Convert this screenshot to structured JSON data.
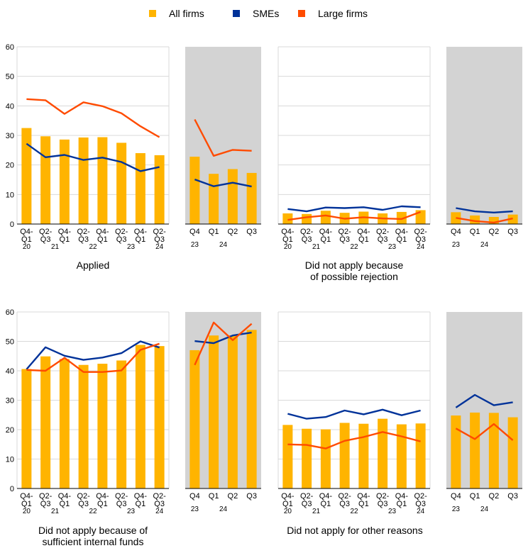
{
  "legend": {
    "items": [
      {
        "label": "All firms",
        "color": "#FFB400"
      },
      {
        "label": "SMEs",
        "color": "#003299"
      },
      {
        "label": "Large firms",
        "color": "#FF4B00"
      }
    ]
  },
  "colors": {
    "all_firms": "#FFB400",
    "smes": "#003299",
    "large_firms": "#FF4B00",
    "grid": "#d9d9d9",
    "shaded_panel": "#d3d3d3"
  },
  "panel_titles": {
    "applied": "Applied",
    "rejection_line1": "Did not apply because",
    "rejection_line2": "of possible rejection",
    "internal_line1": "Did not apply because of",
    "internal_line2": "sufficient internal funds",
    "other": "Did not apply for other reasons"
  },
  "chart_data": [
    {
      "type": "bar",
      "title": "Applied",
      "ylim": [
        0,
        60
      ],
      "yticks": [
        0,
        10,
        20,
        30,
        40,
        50,
        60
      ],
      "grid": true,
      "legend": "top",
      "left": {
        "categories": [
          "Q4-Q1",
          "Q2-Q3",
          "Q4-Q1",
          "Q2-Q3",
          "Q4-Q1",
          "Q2-Q3",
          "Q4-Q1",
          "Q2-Q3"
        ],
        "tick_top": [
          "Q4-",
          "Q2-",
          "Q4-",
          "Q2-",
          "Q4-",
          "Q2-",
          "Q4-",
          "Q2-"
        ],
        "tick_bottom": [
          "Q1",
          "Q3",
          "Q1",
          "Q3",
          "Q1",
          "Q3",
          "Q1",
          "Q3"
        ],
        "year_labels": [
          "20",
          "21",
          "22",
          "23",
          "24"
        ],
        "year_label_slots": [
          0,
          1.5,
          3.5,
          5.5,
          7
        ],
        "series": [
          {
            "name": "All firms",
            "kind": "bar",
            "values": [
              32.5,
              29.7,
              28.6,
              29.3,
              29.4,
              27.5,
              24.0,
              23.3
            ]
          },
          {
            "name": "SMEs",
            "kind": "line",
            "values": [
              27.2,
              22.6,
              23.4,
              21.7,
              22.5,
              21.0,
              17.9,
              19.3
            ]
          },
          {
            "name": "Large firms",
            "kind": "line",
            "values": [
              42.3,
              41.9,
              37.3,
              41.2,
              39.9,
              37.5,
              33.1,
              29.4
            ]
          }
        ]
      },
      "right": {
        "shaded": true,
        "categories": [
          "Q4",
          "Q1",
          "Q2",
          "Q3"
        ],
        "year_labels": [
          "23",
          "24"
        ],
        "year_label_slots": [
          0,
          1.5
        ],
        "series": [
          {
            "name": "All firms",
            "kind": "bar",
            "values": [
              22.8,
              17.0,
              18.6,
              17.3
            ]
          },
          {
            "name": "SMEs",
            "kind": "line",
            "values": [
              15.1,
              12.8,
              14.0,
              12.7
            ]
          },
          {
            "name": "Large firms",
            "kind": "line",
            "values": [
              35.4,
              23.1,
              25.1,
              24.8
            ]
          }
        ]
      }
    },
    {
      "type": "bar",
      "title": "Did not apply because of possible rejection",
      "ylim": [
        0,
        60
      ],
      "grid": true,
      "left": {
        "categories": [
          "Q4-Q1",
          "Q2-Q3",
          "Q4-Q1",
          "Q2-Q3",
          "Q4-Q1",
          "Q2-Q3",
          "Q4-Q1",
          "Q2-Q3"
        ],
        "tick_top": [
          "Q4-",
          "Q2-",
          "Q4-",
          "Q2-",
          "Q4-",
          "Q2-",
          "Q4-",
          "Q2-"
        ],
        "tick_bottom": [
          "Q1",
          "Q3",
          "Q1",
          "Q3",
          "Q1",
          "Q3",
          "Q1",
          "Q3"
        ],
        "year_labels": [
          "20",
          "21",
          "22",
          "23",
          "24"
        ],
        "year_label_slots": [
          0,
          1.5,
          3.5,
          5.5,
          7
        ],
        "series": [
          {
            "name": "All firms",
            "kind": "bar",
            "values": [
              3.6,
              3.4,
              4.5,
              3.8,
              4.2,
              3.6,
              4.1,
              4.7
            ]
          },
          {
            "name": "SMEs",
            "kind": "line",
            "values": [
              5.1,
              4.3,
              5.6,
              5.4,
              5.7,
              4.8,
              6.0,
              5.7
            ]
          },
          {
            "name": "Large firms",
            "kind": "line",
            "values": [
              1.4,
              2.3,
              2.9,
              1.8,
              2.3,
              1.9,
              1.7,
              4.1
            ]
          }
        ]
      },
      "right": {
        "shaded": true,
        "categories": [
          "Q4",
          "Q1",
          "Q2",
          "Q3"
        ],
        "year_labels": [
          "23",
          "24"
        ],
        "year_label_slots": [
          0,
          1.5
        ],
        "series": [
          {
            "name": "All firms",
            "kind": "bar",
            "values": [
              4.0,
              2.9,
              2.4,
              3.2
            ]
          },
          {
            "name": "SMEs",
            "kind": "line",
            "values": [
              5.4,
              4.3,
              3.9,
              4.3
            ]
          },
          {
            "name": "Large firms",
            "kind": "line",
            "values": [
              2.1,
              1.0,
              0.5,
              1.9
            ]
          }
        ]
      }
    },
    {
      "type": "bar",
      "title": "Did not apply because of sufficient internal funds",
      "ylim": [
        0,
        60
      ],
      "yticks": [
        0,
        10,
        20,
        30,
        40,
        50,
        60
      ],
      "grid": true,
      "left": {
        "categories": [
          "Q4-Q1",
          "Q2-Q3",
          "Q4-Q1",
          "Q2-Q3",
          "Q4-Q1",
          "Q2-Q3",
          "Q4-Q1",
          "Q2-Q3"
        ],
        "tick_top": [
          "Q4-",
          "Q2-",
          "Q4-",
          "Q2-",
          "Q4-",
          "Q2-",
          "Q4-",
          "Q2-"
        ],
        "tick_bottom": [
          "Q1",
          "Q3",
          "Q1",
          "Q3",
          "Q1",
          "Q3",
          "Q1",
          "Q3"
        ],
        "year_labels": [
          "20",
          "21",
          "22",
          "23",
          "24"
        ],
        "year_label_slots": [
          0,
          1.5,
          3.5,
          5.5,
          7
        ],
        "series": [
          {
            "name": "All firms",
            "kind": "bar",
            "values": [
              40.6,
              44.9,
              44.0,
              42.0,
              42.4,
              43.5,
              48.8,
              48.4
            ]
          },
          {
            "name": "SMEs",
            "kind": "line",
            "values": [
              40.5,
              48.0,
              45.1,
              43.7,
              44.5,
              46.0,
              50.0,
              47.9
            ]
          },
          {
            "name": "Large firms",
            "kind": "line",
            "values": [
              40.3,
              40.0,
              44.4,
              39.6,
              39.6,
              40.1,
              47.1,
              49.2
            ]
          }
        ]
      },
      "right": {
        "shaded": true,
        "categories": [
          "Q4",
          "Q1",
          "Q2",
          "Q3"
        ],
        "year_labels": [
          "23",
          "24"
        ],
        "year_label_slots": [
          0,
          1.5
        ],
        "series": [
          {
            "name": "All firms",
            "kind": "bar",
            "values": [
              47.0,
              52.0,
              52.0,
              53.9
            ]
          },
          {
            "name": "SMEs",
            "kind": "line",
            "values": [
              50.1,
              49.4,
              52.0,
              53.0
            ]
          },
          {
            "name": "Large firms",
            "kind": "line",
            "values": [
              42.0,
              56.4,
              50.4,
              56.0
            ]
          }
        ]
      }
    },
    {
      "type": "bar",
      "title": "Did not apply for other reasons",
      "ylim": [
        0,
        60
      ],
      "grid": true,
      "left": {
        "categories": [
          "Q4-Q1",
          "Q2-Q3",
          "Q4-Q1",
          "Q2-Q3",
          "Q4-Q1",
          "Q2-Q3",
          "Q4-Q1",
          "Q2-Q3"
        ],
        "tick_top": [
          "Q4-",
          "Q2-",
          "Q4-",
          "Q2-",
          "Q4-",
          "Q2-",
          "Q4-",
          "Q2-"
        ],
        "tick_bottom": [
          "Q1",
          "Q3",
          "Q1",
          "Q3",
          "Q1",
          "Q3",
          "Q1",
          "Q3"
        ],
        "year_labels": [
          "20",
          "21",
          "22",
          "23",
          "24"
        ],
        "year_label_slots": [
          0,
          1.5,
          3.5,
          5.5,
          7
        ],
        "series": [
          {
            "name": "All firms",
            "kind": "bar",
            "values": [
              21.6,
              20.3,
              20.1,
              22.3,
              22.0,
              23.7,
              21.8,
              22.1
            ]
          },
          {
            "name": "SMEs",
            "kind": "line",
            "values": [
              25.4,
              23.7,
              24.3,
              26.5,
              25.2,
              26.8,
              24.9,
              26.5
            ]
          },
          {
            "name": "Large firms",
            "kind": "line",
            "values": [
              15.0,
              14.8,
              13.6,
              16.2,
              17.5,
              19.2,
              17.7,
              16.0
            ]
          }
        ]
      },
      "right": {
        "shaded": true,
        "categories": [
          "Q4",
          "Q1",
          "Q2",
          "Q3"
        ],
        "year_labels": [
          "23",
          "24"
        ],
        "year_label_slots": [
          0,
          1.5
        ],
        "series": [
          {
            "name": "All firms",
            "kind": "bar",
            "values": [
              24.8,
              25.8,
              25.7,
              24.2
            ]
          },
          {
            "name": "SMEs",
            "kind": "line",
            "values": [
              27.5,
              31.8,
              28.3,
              29.3
            ]
          },
          {
            "name": "Large firms",
            "kind": "line",
            "values": [
              20.4,
              16.8,
              21.9,
              16.4
            ]
          }
        ]
      }
    }
  ]
}
